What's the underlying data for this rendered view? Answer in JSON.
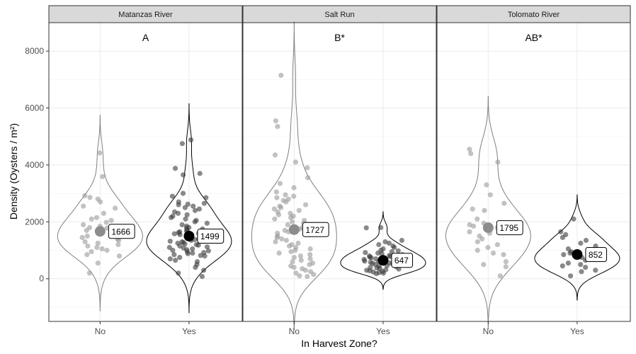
{
  "chart_data": {
    "type": "violin",
    "xlabel": "In Harvest Zone?",
    "ylabel": "Density (Oysters / m²)",
    "ylim": [
      -1500,
      9000
    ],
    "yticks": [
      0,
      2000,
      4000,
      6000,
      8000
    ],
    "categories": [
      "No",
      "Yes"
    ],
    "colors": {
      "No": "#9a9a9a",
      "Yes": "#3a3a3a",
      "mean_no": "#8c8c8c",
      "mean_yes": "#000000",
      "strip_fill": "#d9d9d9",
      "grid": "#ebebeb"
    },
    "panels": [
      {
        "strip": "Matanzas River",
        "significance": "A",
        "groups": [
          {
            "category": "No",
            "mean": 1666,
            "label": "1666",
            "points": [
              4420,
              3590,
              2920,
              2860,
              2800,
              2700,
              2550,
              2480,
              2300,
              2150,
              2100,
              2050,
              1980,
              1900,
              1850,
              1800,
              1780,
              1700,
              1620,
              1580,
              1500,
              1450,
              1400,
              1350,
              1300,
              1250,
              1200,
              1150,
              1100,
              1050,
              1000,
              950,
              850,
              800,
              550,
              200
            ]
          },
          {
            "category": "Yes",
            "mean": 1499,
            "label": "1499",
            "points": [
              4880,
              4750,
              3880,
              3700,
              3650,
              3000,
              2900,
              2850,
              2700,
              2650,
              2620,
              2600,
              2550,
              2500,
              2450,
              2400,
              2350,
              2300,
              2250,
              2200,
              2150,
              2100,
              2050,
              2000,
              1950,
              1900,
              1850,
              1800,
              1780,
              1750,
              1700,
              1680,
              1650,
              1620,
              1600,
              1580,
              1550,
              1520,
              1500,
              1480,
              1450,
              1420,
              1400,
              1380,
              1350,
              1320,
              1300,
              1280,
              1250,
              1220,
              1200,
              1180,
              1150,
              1120,
              1100,
              1080,
              1050,
              1020,
              1000,
              980,
              950,
              920,
              900,
              880,
              850,
              820,
              800,
              750,
              700,
              650,
              600,
              500,
              400,
              300,
              200,
              80
            ]
          }
        ]
      },
      {
        "strip": "Salt Run",
        "significance": "B*",
        "groups": [
          {
            "category": "No",
            "mean": 1727,
            "label": "1727",
            "points": [
              7150,
              5550,
              5350,
              4350,
              4100,
              3900,
              3550,
              3350,
              3200,
              3050,
              2950,
              2900,
              2850,
              2800,
              2750,
              2700,
              2600,
              2550,
              2500,
              2450,
              2400,
              2350,
              2300,
              2250,
              2200,
              2150,
              2100,
              2050,
              2000,
              1950,
              1900,
              1850,
              1800,
              1750,
              1700,
              1650,
              1600,
              1550,
              1500,
              1450,
              1400,
              1350,
              1300,
              1250,
              1200,
              1150,
              1100,
              1050,
              1000,
              950,
              900,
              850,
              800,
              750,
              700,
              650,
              600,
              550,
              500,
              450,
              400,
              350,
              300,
              250,
              200,
              150,
              100,
              80
            ]
          },
          {
            "category": "Yes",
            "mean": 647,
            "label": "647",
            "points": [
              1800,
              1790,
              1350,
              1300,
              1250,
              1200,
              1150,
              1100,
              1050,
              1000,
              980,
              950,
              920,
              900,
              880,
              850,
              820,
              800,
              780,
              760,
              740,
              720,
              700,
              680,
              660,
              640,
              620,
              600,
              580,
              560,
              540,
              520,
              500,
              480,
              460,
              440,
              420,
              400,
              380,
              360,
              340,
              320,
              300,
              280,
              260,
              240,
              220,
              200,
              180
            ]
          }
        ]
      },
      {
        "strip": "Tolomato River",
        "significance": "AB*",
        "groups": [
          {
            "category": "No",
            "mean": 1795,
            "label": "1795",
            "points": [
              4550,
              4400,
              4100,
              3300,
              2950,
              2650,
              2450,
              2400,
              2100,
              1950,
              1900,
              1850,
              1800,
              1700,
              1650,
              1600,
              1500,
              1400,
              1300,
              1200,
              1100,
              1000,
              900,
              850,
              600,
              500,
              420,
              100
            ]
          },
          {
            "category": "Yes",
            "mean": 852,
            "label": "852",
            "points": [
              2100,
              1650,
              1550,
              1450,
              1350,
              1250,
              1150,
              1050,
              950,
              900,
              850,
              800,
              750,
              700,
              650,
              550,
              500,
              450,
              400,
              300,
              250,
              100
            ]
          }
        ]
      }
    ]
  }
}
